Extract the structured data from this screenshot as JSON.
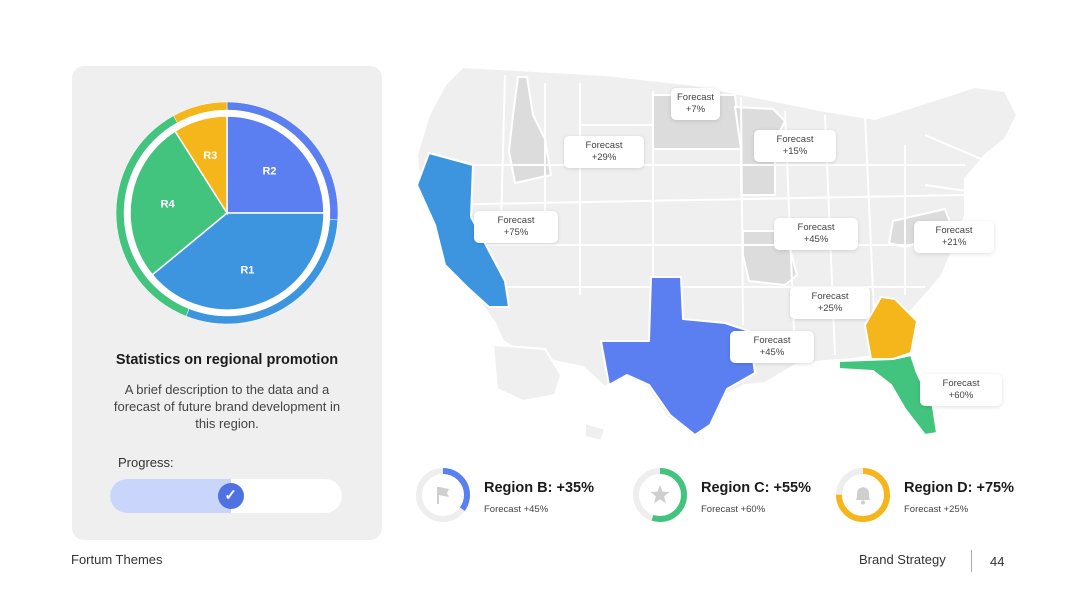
{
  "card": {
    "title": "Statistics on regional promotion",
    "description": "A brief description to the data and a forecast of future brand development in this region.",
    "progress_label": "Progress:",
    "progress_value": 0.52,
    "progress_icon": "check-icon"
  },
  "chart_data": {
    "type": "pie",
    "slices": [
      {
        "label": "R2",
        "value": 25,
        "color": "#5b7ff0"
      },
      {
        "label": "R1",
        "value": 39,
        "color": "#3d95e0"
      },
      {
        "label": "R4",
        "value": 27,
        "color": "#42c47f"
      },
      {
        "label": "R3",
        "value": 9,
        "color": "#f5b61c"
      }
    ],
    "outer_ring": [
      {
        "label": "R2",
        "value": 26,
        "color": "#5b7ff0"
      },
      {
        "label": "R1",
        "value": 30,
        "color": "#3d95e0"
      },
      {
        "label": "R4",
        "value": 36,
        "color": "#42c47f"
      },
      {
        "label": "R3",
        "value": 8,
        "color": "#f5b61c"
      }
    ]
  },
  "map": {
    "forecasts": [
      {
        "label": "Forecast",
        "value": "+7%"
      },
      {
        "label": "Forecast",
        "value": "+29%"
      },
      {
        "label": "Forecast",
        "value": "+15%"
      },
      {
        "label": "Forecast",
        "value": "+75%"
      },
      {
        "label": "Forecast",
        "value": "+45%"
      },
      {
        "label": "Forecast",
        "value": "+21%"
      },
      {
        "label": "Forecast",
        "value": "+25%"
      },
      {
        "label": "Forecast",
        "value": "+45%"
      },
      {
        "label": "Forecast",
        "value": "+60%"
      }
    ],
    "highlight_colors": {
      "california": "#3d95e0",
      "texas": "#5b7ff0",
      "georgia": "#f5b61c",
      "florida": "#42c47f"
    }
  },
  "regions": [
    {
      "title": "Region B: +35%",
      "subtitle": "Forecast +45%",
      "icon": "flag-icon",
      "color": "#5b7ff0",
      "value": 0.35
    },
    {
      "title": "Region C: +55%",
      "subtitle": "Forecast +60%",
      "icon": "star-icon",
      "color": "#42c47f",
      "value": 0.55
    },
    {
      "title": "Region D: +75%",
      "subtitle": "Forecast +25%",
      "icon": "bell-icon",
      "color": "#f5b61c",
      "value": 0.75
    }
  ],
  "footer": {
    "brand": "Fortum Themes",
    "section": "Brand Strategy",
    "page": "44"
  }
}
